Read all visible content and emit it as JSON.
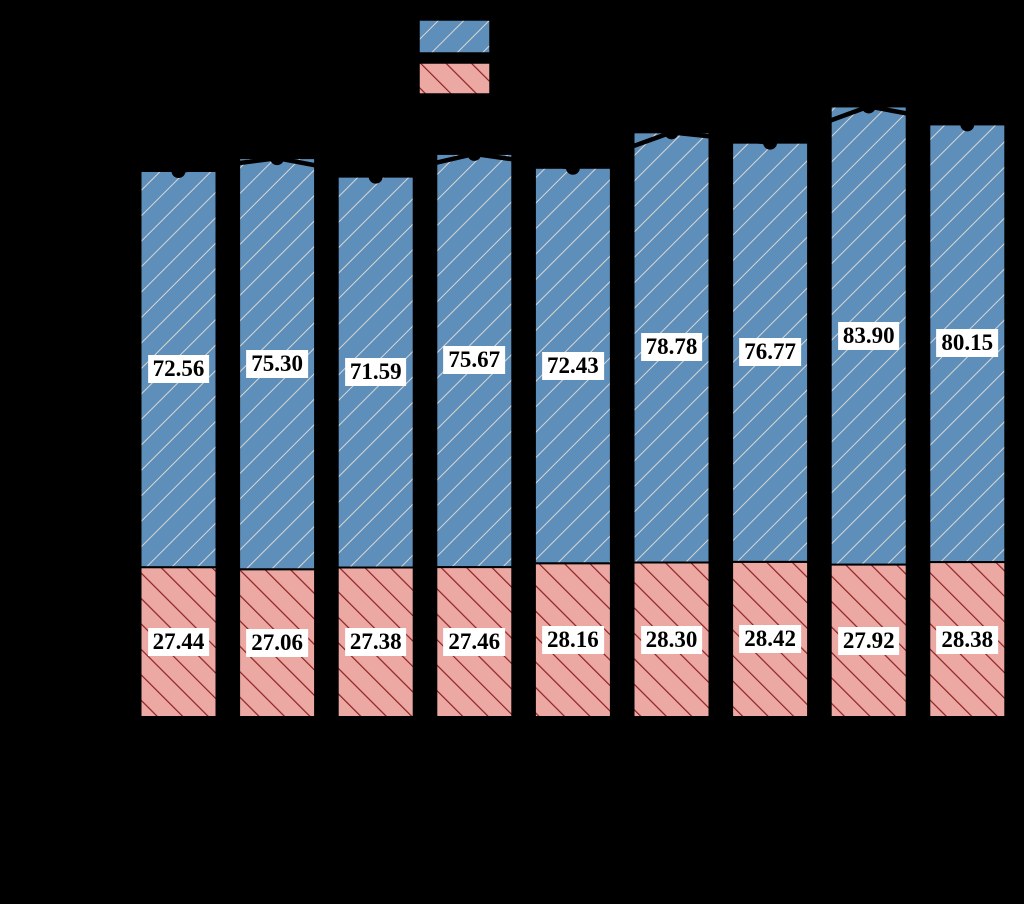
{
  "background_color": "#000000",
  "chart_data": {
    "type": "bar",
    "stacked": true,
    "orientation": "vertical",
    "n_bars": 9,
    "categories": [
      "",
      "",
      "",
      "",
      "",
      "",
      "",
      "",
      ""
    ],
    "series": [
      {
        "name": "upper-segment-blue-hatched",
        "hatch": "/",
        "fill": "#5e8fba",
        "hatch_color": "#d8d6d2",
        "edge_color": "#000000",
        "values": [
          72.56,
          75.3,
          71.59,
          75.67,
          72.43,
          78.78,
          76.77,
          83.9,
          80.15
        ]
      },
      {
        "name": "lower-segment-red-hatched",
        "hatch": "\\",
        "fill": "#eca9a4",
        "hatch_color": "#8e2023",
        "edge_color": "#000000",
        "values": [
          27.44,
          27.06,
          27.38,
          27.46,
          28.16,
          28.3,
          28.42,
          27.92,
          28.38
        ]
      }
    ],
    "totals_line": {
      "color": "#000000",
      "marker": "circle",
      "values": [
        100.0,
        102.36,
        98.97,
        103.13,
        100.59,
        107.08,
        105.19,
        111.82,
        108.53
      ]
    },
    "value_labels": {
      "text_color": "#000000",
      "background": "#ffffff",
      "decimals": 2
    },
    "legend_position": "top-center",
    "grid": false
  },
  "legend": {
    "swatches": [
      {
        "name": "blue-hatched-swatch"
      },
      {
        "name": "red-hatched-swatch"
      }
    ]
  }
}
